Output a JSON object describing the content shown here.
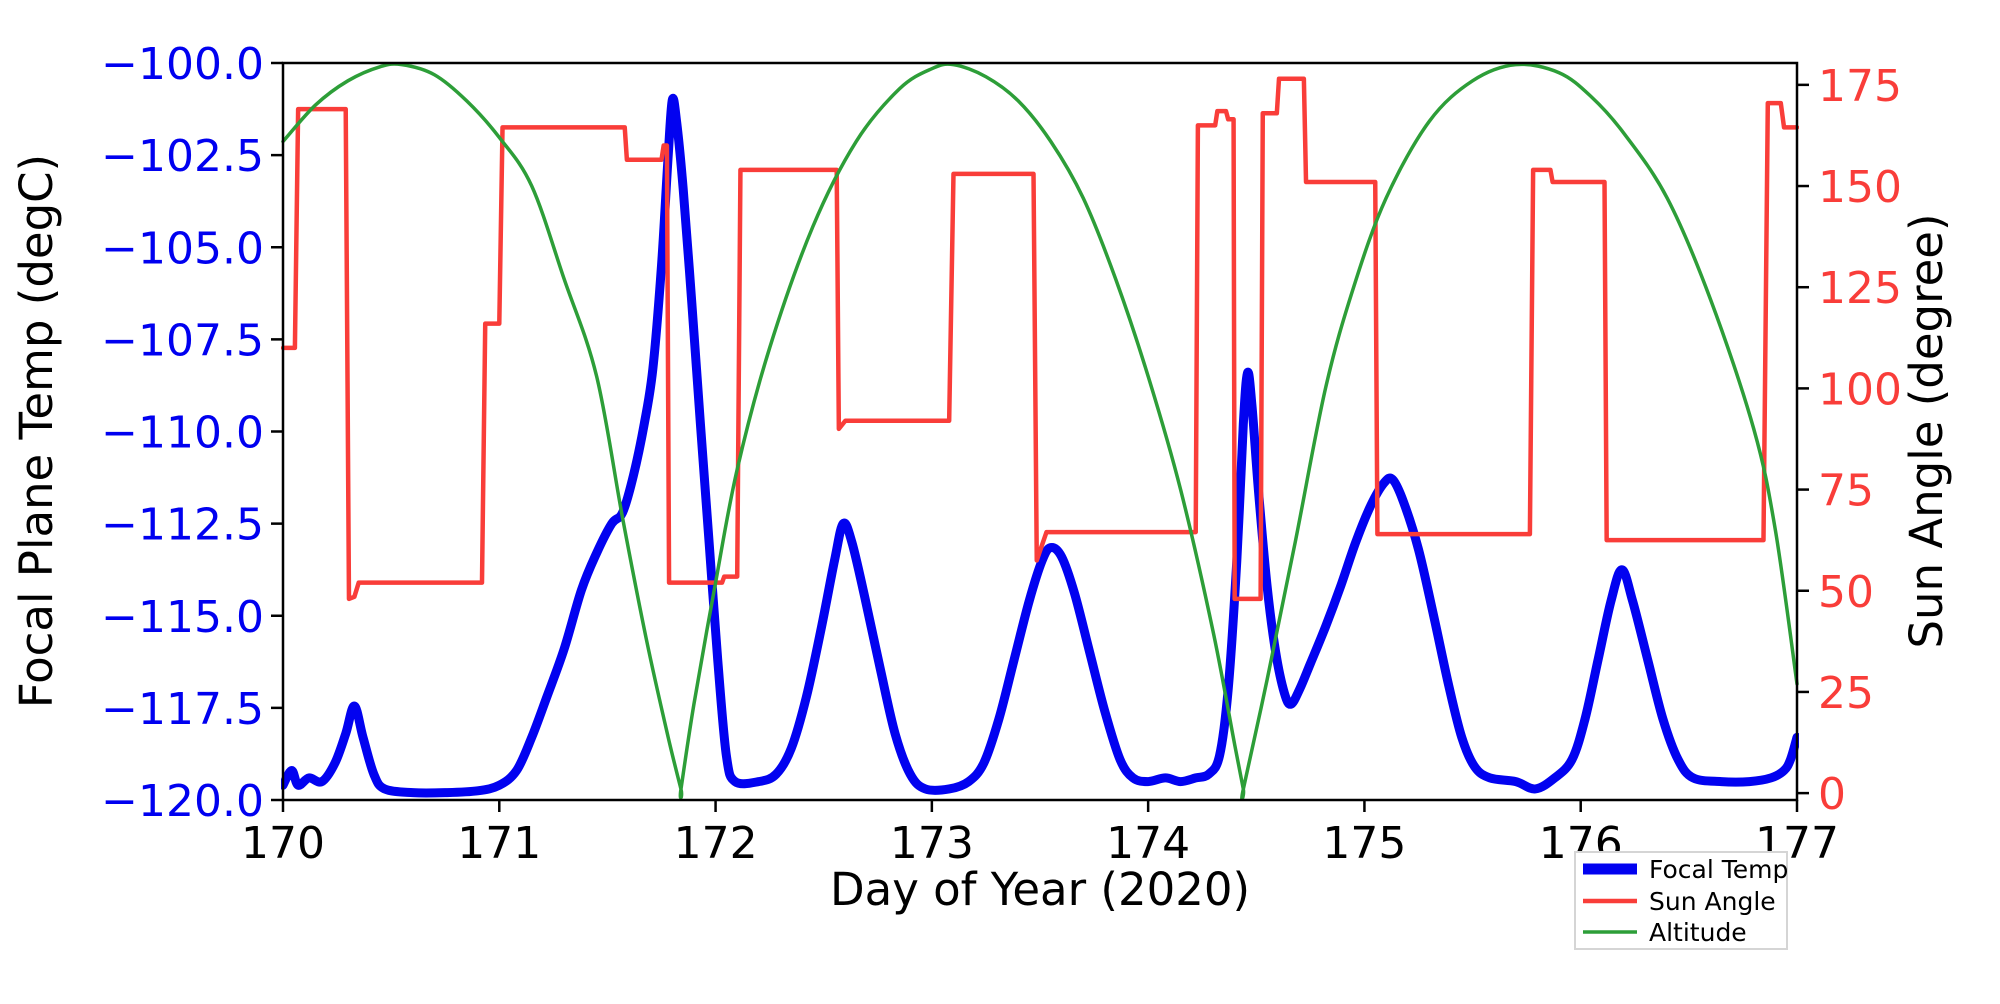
{
  "figure": {
    "xlabel": "Day of Year (2020)",
    "ylabel_left": "Focal Plane Temp (degC)",
    "ylabel_right": "Sun Angle (degree)",
    "background_color": "#ffffff",
    "spine_color": "#000000"
  },
  "legend": {
    "items": [
      {
        "label": "Focal Temp",
        "color": "#0202f0",
        "linewidth": 11
      },
      {
        "label": "Sun Angle",
        "color": "#f93d39",
        "linewidth": 4.5
      },
      {
        "label": "Altitude",
        "color": "#2d9e38",
        "linewidth": 3.5
      }
    ]
  },
  "chart_data": {
    "type": "line",
    "title": "",
    "xlabel": "Day of Year (2020)",
    "x_axis": {
      "range": [
        170,
        177
      ],
      "tick_values": [
        170,
        171,
        172,
        173,
        174,
        175,
        176,
        177
      ],
      "tick_labels": [
        "170",
        "171",
        "172",
        "173",
        "174",
        "175",
        "176",
        "177"
      ],
      "color": "#000000"
    },
    "left_axis": {
      "label": "Focal Plane Temp (degC)",
      "range": [
        -120.0,
        -100.0
      ],
      "tick_values": [
        -100.0,
        -102.5,
        -105.0,
        -107.5,
        -110.0,
        -112.5,
        -115.0,
        -117.5,
        -120.0
      ],
      "tick_labels": [
        "−100.0",
        "−102.5",
        "−105.0",
        "−107.5",
        "−110.0",
        "−112.5",
        "−115.0",
        "−117.5",
        "−120.0"
      ],
      "label_color": "#0000f0"
    },
    "right_axis": {
      "label": "Sun Angle (degree)",
      "range": [
        -1.7,
        180.4
      ],
      "tick_values": [
        0,
        25,
        50,
        75,
        100,
        125,
        150,
        175
      ],
      "tick_labels": [
        "0",
        "25",
        "50",
        "75",
        "100",
        "125",
        "150",
        "175"
      ],
      "label_color": "#f93d39"
    },
    "grid": false,
    "legend_position": "lower right, below axes",
    "series": [
      {
        "name": "Focal Temp",
        "axis": "left",
        "color": "#0202f0",
        "linewidth": 9,
        "smooth": true,
        "points": [
          [
            170.0,
            -119.6
          ],
          [
            170.04,
            -119.2
          ],
          [
            170.07,
            -119.6
          ],
          [
            170.12,
            -119.4
          ],
          [
            170.18,
            -119.5
          ],
          [
            170.24,
            -119.0
          ],
          [
            170.29,
            -118.2
          ],
          [
            170.33,
            -117.45
          ],
          [
            170.37,
            -118.3
          ],
          [
            170.42,
            -119.3
          ],
          [
            170.47,
            -119.7
          ],
          [
            170.6,
            -119.8
          ],
          [
            170.75,
            -119.8
          ],
          [
            170.9,
            -119.75
          ],
          [
            171.0,
            -119.6
          ],
          [
            171.08,
            -119.2
          ],
          [
            171.15,
            -118.3
          ],
          [
            171.22,
            -117.2
          ],
          [
            171.3,
            -115.9
          ],
          [
            171.38,
            -114.3
          ],
          [
            171.45,
            -113.3
          ],
          [
            171.52,
            -112.5
          ],
          [
            171.57,
            -112.2
          ],
          [
            171.62,
            -111.2
          ],
          [
            171.67,
            -109.8
          ],
          [
            171.71,
            -108.3
          ],
          [
            171.75,
            -105.5
          ],
          [
            171.78,
            -102.6
          ],
          [
            171.8,
            -101.0
          ],
          [
            171.82,
            -101.6
          ],
          [
            171.85,
            -103.4
          ],
          [
            171.89,
            -106.5
          ],
          [
            171.93,
            -109.8
          ],
          [
            171.97,
            -113.0
          ],
          [
            172.01,
            -116.2
          ],
          [
            172.05,
            -118.8
          ],
          [
            172.09,
            -119.5
          ],
          [
            172.2,
            -119.5
          ],
          [
            172.28,
            -119.3
          ],
          [
            172.35,
            -118.6
          ],
          [
            172.42,
            -117.2
          ],
          [
            172.49,
            -115.3
          ],
          [
            172.55,
            -113.5
          ],
          [
            172.59,
            -112.5
          ],
          [
            172.63,
            -113.0
          ],
          [
            172.69,
            -114.5
          ],
          [
            172.76,
            -116.4
          ],
          [
            172.83,
            -118.2
          ],
          [
            172.9,
            -119.3
          ],
          [
            172.97,
            -119.7
          ],
          [
            173.08,
            -119.7
          ],
          [
            173.17,
            -119.5
          ],
          [
            173.24,
            -119.0
          ],
          [
            173.31,
            -117.8
          ],
          [
            173.38,
            -116.2
          ],
          [
            173.45,
            -114.6
          ],
          [
            173.51,
            -113.5
          ],
          [
            173.55,
            -113.15
          ],
          [
            173.6,
            -113.4
          ],
          [
            173.66,
            -114.4
          ],
          [
            173.73,
            -116.0
          ],
          [
            173.8,
            -117.6
          ],
          [
            173.87,
            -118.9
          ],
          [
            173.93,
            -119.4
          ],
          [
            174.0,
            -119.5
          ],
          [
            174.08,
            -119.4
          ],
          [
            174.15,
            -119.5
          ],
          [
            174.22,
            -119.4
          ],
          [
            174.28,
            -119.3
          ],
          [
            174.33,
            -118.8
          ],
          [
            174.37,
            -117.0
          ],
          [
            174.41,
            -113.5
          ],
          [
            174.44,
            -109.8
          ],
          [
            174.46,
            -108.4
          ],
          [
            174.48,
            -109.3
          ],
          [
            174.51,
            -111.6
          ],
          [
            174.55,
            -114.2
          ],
          [
            174.59,
            -116.0
          ],
          [
            174.63,
            -117.1
          ],
          [
            174.66,
            -117.4
          ],
          [
            174.7,
            -117.0
          ],
          [
            174.75,
            -116.3
          ],
          [
            174.82,
            -115.3
          ],
          [
            174.89,
            -114.2
          ],
          [
            174.96,
            -113.0
          ],
          [
            175.03,
            -112.0
          ],
          [
            175.09,
            -111.4
          ],
          [
            175.13,
            -111.3
          ],
          [
            175.18,
            -111.9
          ],
          [
            175.25,
            -113.2
          ],
          [
            175.32,
            -115.0
          ],
          [
            175.39,
            -116.9
          ],
          [
            175.45,
            -118.3
          ],
          [
            175.51,
            -119.1
          ],
          [
            175.58,
            -119.4
          ],
          [
            175.7,
            -119.5
          ],
          [
            175.79,
            -119.7
          ],
          [
            175.88,
            -119.4
          ],
          [
            175.96,
            -118.9
          ],
          [
            176.02,
            -117.8
          ],
          [
            176.08,
            -116.2
          ],
          [
            176.14,
            -114.6
          ],
          [
            176.19,
            -113.75
          ],
          [
            176.24,
            -114.6
          ],
          [
            176.31,
            -116.2
          ],
          [
            176.38,
            -117.8
          ],
          [
            176.45,
            -118.9
          ],
          [
            176.52,
            -119.4
          ],
          [
            176.65,
            -119.5
          ],
          [
            176.78,
            -119.5
          ],
          [
            176.88,
            -119.4
          ],
          [
            176.94,
            -119.2
          ],
          [
            176.97,
            -118.9
          ],
          [
            177.0,
            -118.3
          ]
        ]
      },
      {
        "name": "Sun Angle",
        "axis": "right",
        "color": "#f93d39",
        "linewidth": 4.5,
        "smooth": false,
        "points": [
          [
            170.0,
            110
          ],
          [
            170.055,
            110
          ],
          [
            170.07,
            169
          ],
          [
            170.29,
            169
          ],
          [
            170.305,
            48
          ],
          [
            170.33,
            48.5
          ],
          [
            170.35,
            52
          ],
          [
            170.92,
            52
          ],
          [
            170.935,
            116
          ],
          [
            171.0,
            116
          ],
          [
            171.015,
            164.5
          ],
          [
            171.58,
            164.5
          ],
          [
            171.59,
            156.5
          ],
          [
            171.75,
            156.5
          ],
          [
            171.76,
            160
          ],
          [
            171.775,
            160
          ],
          [
            171.785,
            52
          ],
          [
            172.03,
            52
          ],
          [
            172.04,
            53.5
          ],
          [
            172.1,
            53.5
          ],
          [
            172.115,
            154
          ],
          [
            172.56,
            154
          ],
          [
            172.57,
            90
          ],
          [
            172.6,
            92
          ],
          [
            173.08,
            92
          ],
          [
            173.1,
            153
          ],
          [
            173.47,
            153
          ],
          [
            173.485,
            57.5
          ],
          [
            173.53,
            64.5
          ],
          [
            174.22,
            64.5
          ],
          [
            174.23,
            165
          ],
          [
            174.31,
            165
          ],
          [
            174.32,
            168.5
          ],
          [
            174.36,
            168.5
          ],
          [
            174.37,
            166.5
          ],
          [
            174.395,
            166.5
          ],
          [
            174.4,
            48
          ],
          [
            174.52,
            48
          ],
          [
            174.53,
            168
          ],
          [
            174.595,
            168
          ],
          [
            174.605,
            176.5
          ],
          [
            174.72,
            176.5
          ],
          [
            174.73,
            151
          ],
          [
            175.05,
            151
          ],
          [
            175.06,
            64
          ],
          [
            175.765,
            64
          ],
          [
            175.78,
            154
          ],
          [
            175.86,
            154
          ],
          [
            175.87,
            151
          ],
          [
            176.11,
            151
          ],
          [
            176.12,
            62.5
          ],
          [
            176.845,
            62.5
          ],
          [
            176.865,
            170.5
          ],
          [
            176.925,
            170.5
          ],
          [
            176.94,
            164.5
          ],
          [
            177.0,
            164.5
          ]
        ]
      },
      {
        "name": "Altitude",
        "axis": "right",
        "color": "#2d9e38",
        "linewidth": 3.5,
        "smooth": true,
        "points": [
          [
            170.0,
            161
          ],
          [
            170.15,
            170
          ],
          [
            170.3,
            176
          ],
          [
            170.45,
            179.5
          ],
          [
            170.55,
            180
          ],
          [
            170.7,
            177.5
          ],
          [
            170.85,
            171
          ],
          [
            171.0,
            162
          ],
          [
            171.15,
            150
          ],
          [
            171.3,
            127
          ],
          [
            171.45,
            103
          ],
          [
            171.57,
            68
          ],
          [
            171.68,
            38
          ],
          [
            171.78,
            14
          ],
          [
            171.84,
            1
          ],
          [
            171.84,
            1
          ],
          [
            171.9,
            22
          ],
          [
            172.0,
            52
          ],
          [
            172.1,
            80
          ],
          [
            172.25,
            110
          ],
          [
            172.45,
            140
          ],
          [
            172.65,
            161
          ],
          [
            172.85,
            174
          ],
          [
            173.0,
            179
          ],
          [
            173.1,
            180
          ],
          [
            173.25,
            177
          ],
          [
            173.4,
            171
          ],
          [
            173.55,
            161
          ],
          [
            173.7,
            147
          ],
          [
            173.85,
            127
          ],
          [
            174.0,
            103
          ],
          [
            174.15,
            75
          ],
          [
            174.3,
            40
          ],
          [
            174.4,
            12
          ],
          [
            174.44,
            1
          ],
          [
            174.44,
            1
          ],
          [
            174.55,
            28
          ],
          [
            174.68,
            62
          ],
          [
            174.82,
            100
          ],
          [
            174.95,
            125
          ],
          [
            175.1,
            147
          ],
          [
            175.3,
            166
          ],
          [
            175.5,
            176
          ],
          [
            175.7,
            180
          ],
          [
            175.9,
            178
          ],
          [
            176.05,
            172
          ],
          [
            176.2,
            163
          ],
          [
            176.4,
            147
          ],
          [
            176.6,
            122
          ],
          [
            176.8,
            90
          ],
          [
            176.9,
            65
          ],
          [
            177.0,
            27
          ]
        ]
      }
    ]
  }
}
